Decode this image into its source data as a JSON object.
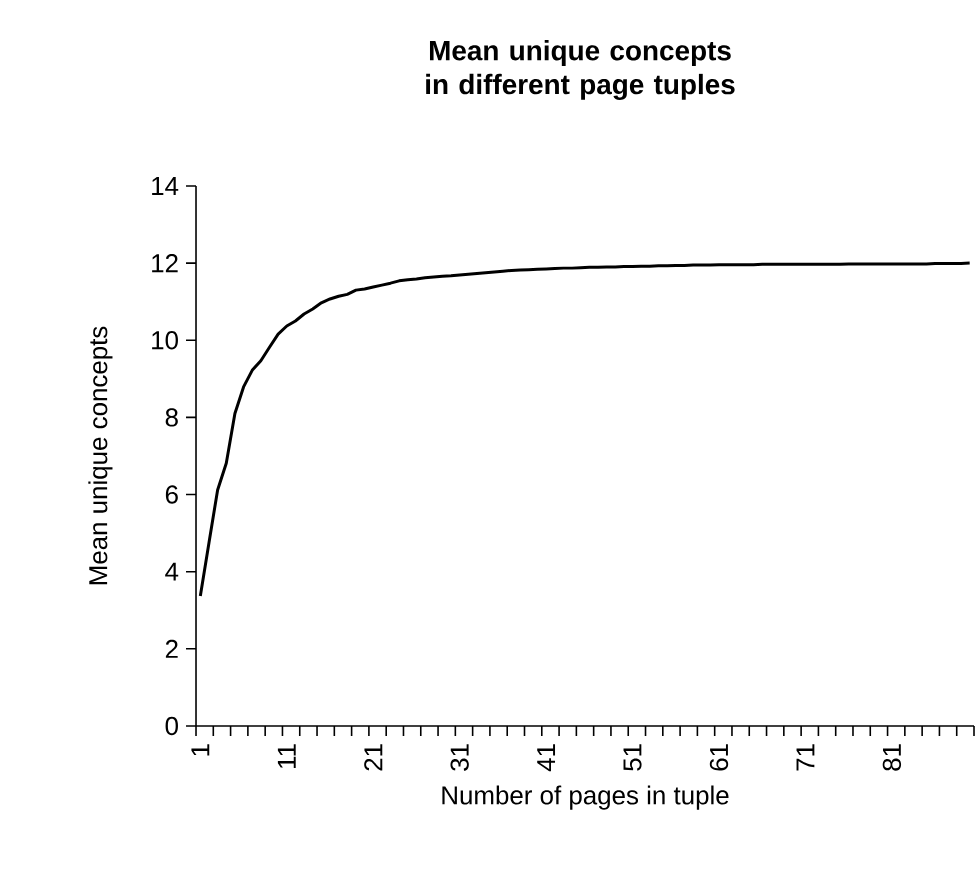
{
  "chart_data": {
    "type": "line",
    "title": "Mean unique concepts in different page tuples",
    "xlabel": "Number of pages in tuple",
    "ylabel": "Mean unique concepts",
    "categories": [
      "1",
      null,
      null,
      null,
      null,
      null,
      null,
      null,
      null,
      null,
      "11",
      null,
      null,
      null,
      null,
      null,
      null,
      null,
      null,
      null,
      "21",
      null,
      null,
      null,
      null,
      null,
      null,
      null,
      null,
      null,
      "31",
      null,
      null,
      null,
      null,
      null,
      null,
      null,
      null,
      null,
      "41",
      null,
      null,
      null,
      null,
      null,
      null,
      null,
      null,
      null,
      "51",
      null,
      null,
      null,
      null,
      null,
      null,
      null,
      null,
      null,
      "61",
      null,
      null,
      null,
      null,
      null,
      null,
      null,
      null,
      null,
      "71",
      null,
      null,
      null,
      null,
      null,
      null,
      null,
      null,
      null,
      "81",
      null,
      null,
      null,
      null,
      null,
      null,
      null,
      null,
      null
    ],
    "series": [
      {
        "color": "#000000",
        "values": [
          3.37,
          4.75,
          6.12,
          6.81,
          8.1,
          8.79,
          9.22,
          9.47,
          9.82,
          10.16,
          10.37,
          10.5,
          10.68,
          10.81,
          10.97,
          11.07,
          11.14,
          11.19,
          11.3,
          11.33,
          11.38,
          11.43,
          11.48,
          11.54,
          11.57,
          11.59,
          11.62,
          11.64,
          11.66,
          11.67,
          11.69,
          11.71,
          11.73,
          11.75,
          11.77,
          11.79,
          11.81,
          11.82,
          11.83,
          11.84,
          11.85,
          11.86,
          11.87,
          11.87,
          11.88,
          11.89,
          11.89,
          11.9,
          11.9,
          11.91,
          11.91,
          11.92,
          11.92,
          11.93,
          11.93,
          11.94,
          11.94,
          11.95,
          11.95,
          11.95,
          11.96,
          11.96,
          11.96,
          11.96,
          11.96,
          11.97,
          11.97,
          11.97,
          11.97,
          11.97,
          11.97,
          11.97,
          11.97,
          11.97,
          11.97,
          11.98,
          11.98,
          11.98,
          11.98,
          11.98,
          11.98,
          11.98,
          11.98,
          11.98,
          11.98,
          11.99,
          11.99,
          11.99,
          11.99,
          12.0
        ]
      }
    ],
    "ylim": [
      0,
      14
    ],
    "yticks": [
      0,
      2,
      4,
      6,
      8,
      10,
      12,
      14
    ],
    "grid": false,
    "marker": "none",
    "line_style": "solid"
  }
}
